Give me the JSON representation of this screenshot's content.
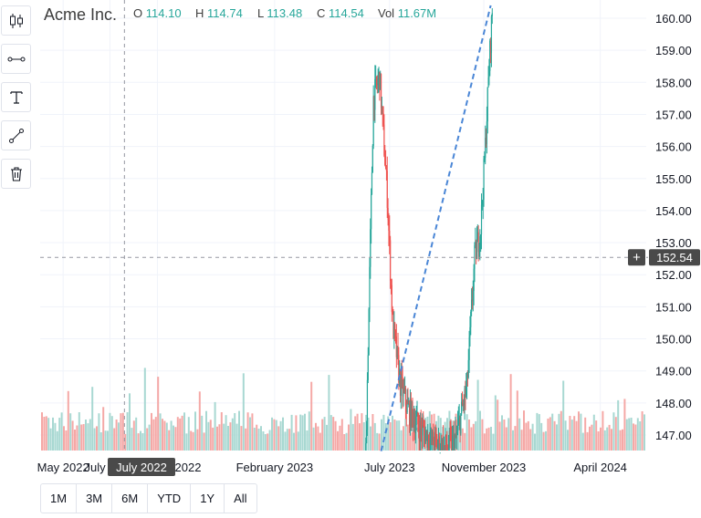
{
  "header": {
    "symbol": "Acme Inc.",
    "ohlc": [
      {
        "key": "O",
        "value": "114.10"
      },
      {
        "key": "H",
        "value": "114.74"
      },
      {
        "key": "L",
        "value": "113.48"
      },
      {
        "key": "C",
        "value": "114.54"
      },
      {
        "key": "Vol",
        "value": "11.67M"
      }
    ]
  },
  "toolbar": {
    "tools": [
      {
        "name": "candlestick-tool",
        "icon": "candlestick-icon"
      },
      {
        "name": "horizontal-line-tool",
        "icon": "horizontal-line-icon"
      },
      {
        "name": "text-tool",
        "icon": "text-icon"
      },
      {
        "name": "trend-line-tool",
        "icon": "trend-line-icon"
      },
      {
        "name": "delete-tool",
        "icon": "trash-icon"
      }
    ]
  },
  "crosshair": {
    "date_label": "July 2022",
    "price_label": "152.54",
    "price": 152.54
  },
  "range_buttons": [
    "1M",
    "3M",
    "6M",
    "YTD",
    "1Y",
    "All"
  ],
  "colors": {
    "up": "#26a69a",
    "down": "#ef5350",
    "up_volume": "#a8d8d2",
    "down_volume": "#f5a8a6",
    "trend_line": "#4a86d6",
    "text": "#131722",
    "crosshair": "#9598a1"
  },
  "chart_data": {
    "type": "candlestick",
    "x_ticks": [
      "May 2022",
      "July 2022",
      "September 2022",
      "February 2023",
      "July 2023",
      "November 2023",
      "April 2024"
    ],
    "y_ticks": [
      147.0,
      148.0,
      149.0,
      150.0,
      151.0,
      152.0,
      153.0,
      154.0,
      155.0,
      156.0,
      157.0,
      158.0,
      159.0,
      160.0
    ],
    "ylim": [
      146.45,
      160.4
    ],
    "xlim": [
      "2022-04-01",
      "2024-05-31"
    ],
    "grid": true,
    "price_path": [
      {
        "date": "2023-05-31",
        "close": 146.5
      },
      {
        "date": "2023-06-05",
        "close": 152.0
      },
      {
        "date": "2023-06-10",
        "close": 157.5
      },
      {
        "date": "2023-06-18",
        "close": 158.2
      },
      {
        "date": "2023-06-28",
        "close": 154.5
      },
      {
        "date": "2023-07-05",
        "close": 150.5
      },
      {
        "date": "2023-07-15",
        "close": 148.6
      },
      {
        "date": "2023-07-25",
        "close": 147.8
      },
      {
        "date": "2023-08-10",
        "close": 147.2
      },
      {
        "date": "2023-08-25",
        "close": 146.8
      },
      {
        "date": "2023-09-10",
        "close": 146.6
      },
      {
        "date": "2023-09-25",
        "close": 146.8
      },
      {
        "date": "2023-10-10",
        "close": 148.5
      },
      {
        "date": "2023-10-20",
        "close": 152.5
      },
      {
        "date": "2023-10-28",
        "close": 153.5
      },
      {
        "date": "2023-11-03",
        "close": 156.0
      },
      {
        "date": "2023-11-08",
        "close": 158.5
      },
      {
        "date": "2023-11-12",
        "close": 160.2
      }
    ],
    "trend_line": {
      "start": {
        "date": "2023-06-20",
        "price": 146.5
      },
      "end": {
        "date": "2023-11-10",
        "price": 160.4
      }
    }
  }
}
